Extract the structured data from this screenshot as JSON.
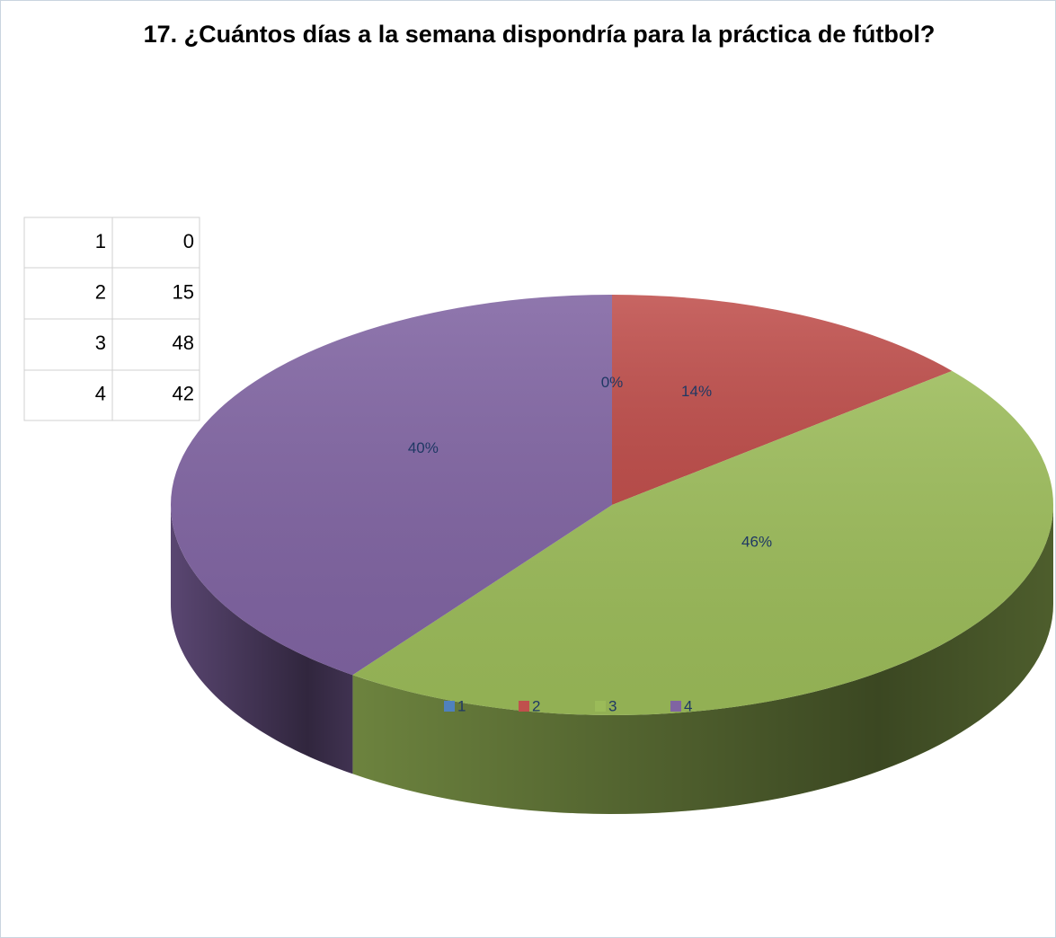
{
  "chart_data": {
    "type": "pie",
    "title": "17. ¿Cuántos días a la semana dispondría para la práctica de fútbol?",
    "categories": [
      "1",
      "2",
      "3",
      "4"
    ],
    "values": [
      0,
      14,
      46,
      40
    ],
    "value_labels": [
      "0%",
      "14%",
      "46%",
      "40%"
    ],
    "colors": [
      "#4f81bd",
      "#c0504d",
      "#9bbb59",
      "#8064a2"
    ],
    "legend": "bottom"
  },
  "table": {
    "rows": [
      [
        1,
        0
      ],
      [
        2,
        15
      ],
      [
        3,
        48
      ],
      [
        4,
        42
      ]
    ]
  }
}
